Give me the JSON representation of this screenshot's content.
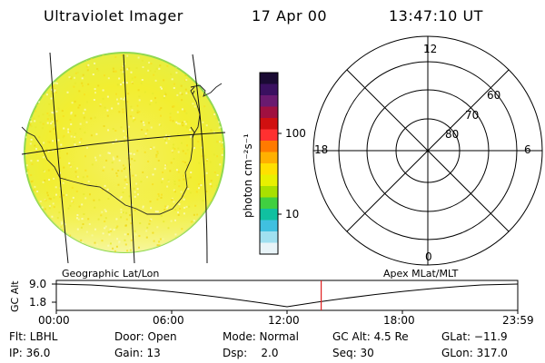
{
  "header": {
    "title": "Ultraviolet Imager",
    "date": "17 Apr 00",
    "time": "13:47:10 UT"
  },
  "colorbar": {
    "unit_label": "photon cm⁻²s⁻¹",
    "tick_labels": [
      "100",
      "10"
    ],
    "colors_top_to_bottom": [
      "#1a0a33",
      "#3a1060",
      "#6a1a70",
      "#a01040",
      "#d01010",
      "#ff3030",
      "#ff7a00",
      "#ffb000",
      "#ffe000",
      "#e8f000",
      "#a8e000",
      "#40d040",
      "#10c0a0",
      "#40c0e0",
      "#a0e0f0",
      "#e8f4f8"
    ]
  },
  "polar_grid": {
    "mlt_labels": {
      "top": "12",
      "left": "18",
      "right": "6",
      "bottom": "0"
    },
    "mlat_labels": [
      "60",
      "70",
      "80"
    ]
  },
  "timeline": {
    "left_title": "Geographic Lat/Lon",
    "right_title": "Apex  MLat/MLT",
    "axis_title": "GC Alt",
    "y_ticks": [
      "9.0",
      "1.8"
    ],
    "x_ticks": [
      "00:00",
      "06:00",
      "12:00",
      "18:00",
      "23:59"
    ],
    "current_time_fraction": 0.574,
    "marker_color": "#e02020"
  },
  "status": {
    "row1": [
      "Flt: LBHL",
      "Door: Open",
      "Mode: Normal",
      "GC Alt: 4.5 Re",
      "GLat: −11.9"
    ],
    "row2": [
      "IP: 36.0",
      "Gain: 13",
      "Dsp:    2.0",
      "Seq: 30",
      "GLon: 317.0"
    ]
  },
  "image_colors": {
    "disk_fill": "#f2f040",
    "disk_light": "#f6f6a0",
    "disk_edge": "#a8e040"
  }
}
